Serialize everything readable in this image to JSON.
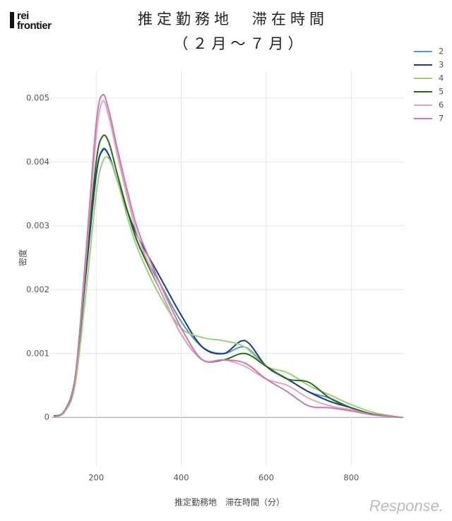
{
  "logo": [
    "rei",
    "frontier"
  ],
  "watermark": "Response.",
  "chart_data": {
    "type": "line",
    "title": "推定勤務地　滞在時間",
    "subtitle": "（２月～７月）",
    "xlabel": "推定勤務地　滞在時間（分）",
    "ylabel": "密度",
    "x": [
      100,
      125,
      150,
      175,
      200,
      215,
      230,
      250,
      275,
      300,
      350,
      400,
      450,
      500,
      550,
      600,
      650,
      700,
      750,
      800,
      850,
      900,
      920
    ],
    "series": [
      {
        "name": "2",
        "color": "#5b97c4",
        "values": [
          2e-05,
          0.0001,
          0.0006,
          0.0022,
          0.0038,
          0.0042,
          0.0041,
          0.0037,
          0.0032,
          0.0027,
          0.0021,
          0.0015,
          0.0011,
          0.001,
          0.0011,
          0.0008,
          0.0006,
          0.0004,
          0.0003,
          0.00015,
          5e-05,
          1e-05,
          0
        ]
      },
      {
        "name": "3",
        "color": "#1c3f78",
        "values": [
          2e-05,
          0.0001,
          0.0006,
          0.0022,
          0.0038,
          0.00418,
          0.0041,
          0.0037,
          0.0032,
          0.0028,
          0.0022,
          0.0016,
          0.0011,
          0.001,
          0.0012,
          0.0008,
          0.0006,
          0.0004,
          0.00025,
          0.00015,
          5e-05,
          1e-05,
          0
        ]
      },
      {
        "name": "4",
        "color": "#9ccf7c",
        "values": [
          1e-05,
          8e-05,
          0.0005,
          0.0019,
          0.0035,
          0.004,
          0.00405,
          0.0037,
          0.0031,
          0.0026,
          0.0019,
          0.0014,
          0.00125,
          0.0012,
          0.0011,
          0.0008,
          0.0007,
          0.0005,
          0.00035,
          0.0002,
          8e-05,
          2e-05,
          0
        ]
      },
      {
        "name": "5",
        "color": "#2a6a1c",
        "values": [
          2e-05,
          0.0001,
          0.0006,
          0.0023,
          0.004,
          0.0044,
          0.0043,
          0.0038,
          0.0032,
          0.0027,
          0.002,
          0.0013,
          0.0009,
          0.0009,
          0.001,
          0.0008,
          0.0006,
          0.00055,
          0.0003,
          0.00015,
          5e-05,
          1e-05,
          0
        ]
      },
      {
        "name": "6",
        "color": "#e6a3bd",
        "values": [
          1e-05,
          0.0001,
          0.0006,
          0.0024,
          0.0044,
          0.00495,
          0.0047,
          0.0041,
          0.0034,
          0.0028,
          0.002,
          0.0013,
          0.0009,
          0.0009,
          0.0008,
          0.0006,
          0.0005,
          0.0003,
          0.00018,
          0.00012,
          4e-05,
          1e-05,
          0
        ]
      },
      {
        "name": "7",
        "color": "#c67ab0",
        "values": [
          1e-05,
          0.0001,
          0.0006,
          0.0025,
          0.0046,
          0.00505,
          0.0048,
          0.0042,
          0.0035,
          0.0029,
          0.0021,
          0.0014,
          0.0009,
          0.0009,
          0.00085,
          0.0006,
          0.0004,
          0.00018,
          0.00015,
          0.0001,
          4e-05,
          1e-05,
          0
        ]
      }
    ],
    "xlim": [
      95,
      924
    ],
    "ylim": [
      -0.00076,
      0.00543
    ],
    "xticks": [
      200,
      400,
      600,
      800
    ],
    "yticks": [
      0,
      0.001,
      0.002,
      0.003,
      0.004,
      0.005
    ],
    "grid": true,
    "legend": "top-right"
  }
}
